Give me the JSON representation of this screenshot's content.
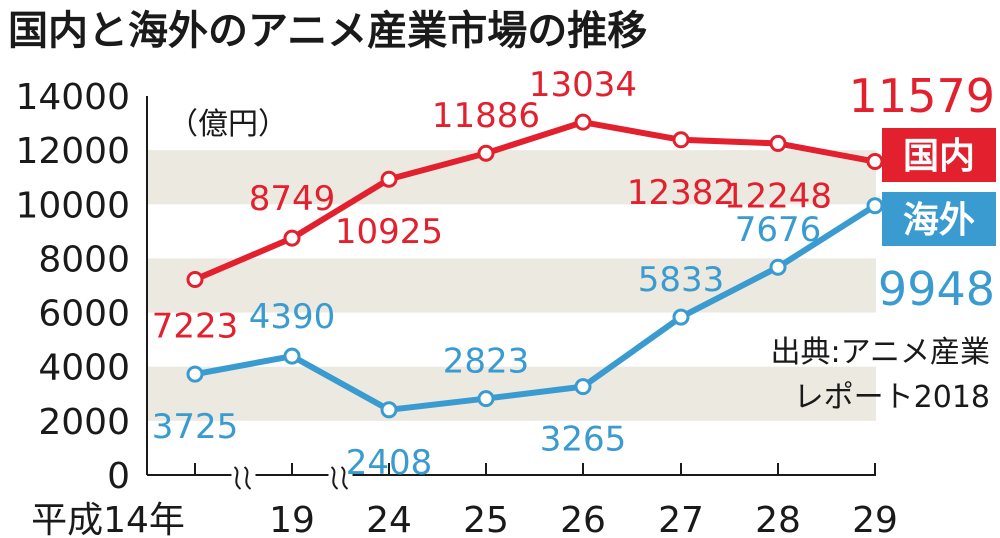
{
  "title": "国内と海外のアニメ産業市場の推移",
  "unit": "（億円）",
  "source_line1": "出典:アニメ産業",
  "source_line2": "レポート2018",
  "legend": {
    "domestic": "国内",
    "overseas": "海外"
  },
  "colors": {
    "domestic": "#e2202e",
    "overseas": "#3a9bd0",
    "band": "#ece9e1",
    "axis": "#1a1a1a"
  },
  "chart_data": {
    "type": "line",
    "categories": [
      "平成14年",
      "19",
      "24",
      "25",
      "26",
      "27",
      "28",
      "29"
    ],
    "axis_break_after": [
      "平成14年",
      "19"
    ],
    "ylim": [
      0,
      14000
    ],
    "yticks": [
      "0",
      "2000",
      "4000",
      "6000",
      "8000",
      "10000",
      "12000",
      "14000"
    ],
    "series": [
      {
        "name": "国内",
        "values": [
          7223,
          8749,
          10925,
          11886,
          13034,
          12382,
          12248,
          11579
        ],
        "labels": [
          "7223",
          "8749",
          "10925",
          "11886",
          "13034",
          "12382",
          "12248",
          "11579"
        ]
      },
      {
        "name": "海外",
        "values": [
          3725,
          4390,
          2408,
          2823,
          3265,
          5833,
          7676,
          9948
        ],
        "labels": [
          "3725",
          "4390",
          "2408",
          "2823",
          "3265",
          "5833",
          "7676",
          "9948"
        ]
      }
    ]
  }
}
